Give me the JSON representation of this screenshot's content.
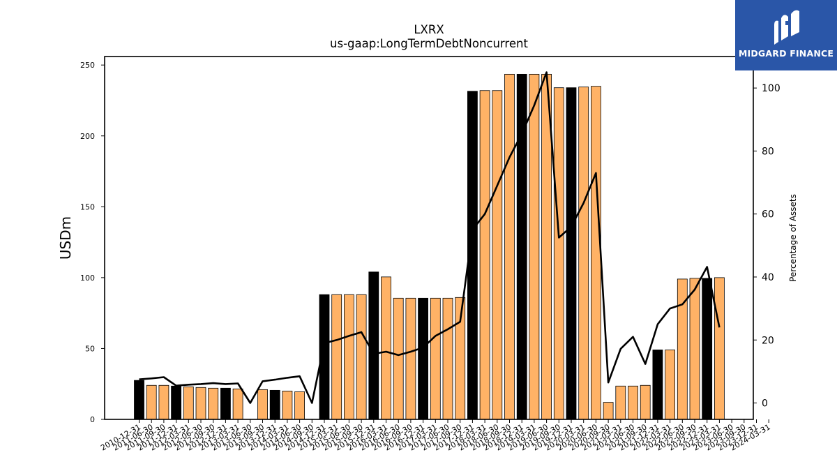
{
  "chart_data": {
    "type": "bar",
    "title": "LXRX",
    "subtitle": "us-gaap:LongTermDebtNoncurrent",
    "ylabel": "USDm",
    "y2label": "Percentage of Assets",
    "ylim": [
      0,
      256
    ],
    "y2lim": [
      -5.2,
      110
    ],
    "yticks": [
      0,
      50,
      100,
      150,
      200,
      250
    ],
    "y2ticks": [
      0,
      20,
      40,
      60,
      80,
      100
    ],
    "categories": [
      "2010-12-31",
      "2011-06-30",
      "2011-09-30",
      "2011-12-31",
      "2012-03-31",
      "2012-06-30",
      "2012-09-30",
      "2012-12-31",
      "2013-03-31",
      "2013-06-30",
      "2013-09-30",
      "2013-12-31",
      "2014-03-31",
      "2014-06-30",
      "2014-09-30",
      "2014-12-31",
      "2015-03-31",
      "2015-06-30",
      "2015-09-30",
      "2015-12-31",
      "2016-03-31",
      "2016-06-30",
      "2016-09-30",
      "2016-12-31",
      "2017-03-31",
      "2017-06-30",
      "2017-09-30",
      "2017-12-31",
      "2018-03-31",
      "2018-06-30",
      "2018-09-30",
      "2018-12-31",
      "2019-03-31",
      "2019-06-30",
      "2019-09-30",
      "2019-12-31",
      "2020-03-31",
      "2020-06-30",
      "2020-09-30",
      "2021-03-31",
      "2021-06-30",
      "2021-09-30",
      "2021-12-31",
      "2022-03-31",
      "2022-06-30",
      "2022-09-30",
      "2022-12-31",
      "2023-03-31"
    ],
    "tick_labels": [
      "2010-12-31",
      "2011-06-30",
      "2011-09-30",
      "2011-12-31",
      "2012-03-31",
      "2012-06-30",
      "2012-09-30",
      "2012-12-31",
      "2013-03-31",
      "2013-06-30",
      "2013-09-30",
      "2013-12-31",
      "2014-03-31",
      "2014-06-30",
      "2014-09-30",
      "2014-12-31",
      "2015-03-31",
      "2015-06-30",
      "2015-09-30",
      "2015-12-31",
      "2016-03-31",
      "2016-06-30",
      "2016-09-30",
      "2016-12-31",
      "2017-03-31",
      "2017-06-30",
      "2017-09-30",
      "2017-12-31",
      "2018-03-31",
      "2018-06-30",
      "2018-09-30",
      "2018-12-31",
      "2019-03-31",
      "2019-06-30",
      "2019-09-30",
      "2019-12-31",
      "2020-03-31",
      "2020-06-30",
      "2020-09-30",
      "2021-03-31",
      "2021-06-30",
      "2021-09-30",
      "2021-12-31",
      "2022-03-31",
      "2022-06-30",
      "2022-09-30",
      "2022-12-31",
      "2023-03-31",
      "2023-06-30",
      "2023-09-30",
      "2023-12-31",
      "2024-03-31"
    ],
    "series": [
      {
        "kind": "bar",
        "axis": "left",
        "values": [
          27.5,
          24,
          24,
          23.5,
          23,
          22.5,
          22,
          22,
          21.5,
          null,
          21,
          20.5,
          20,
          19.5,
          null,
          88,
          88,
          88,
          88,
          104,
          100.5,
          85.5,
          85.5,
          85.5,
          85.5,
          85.5,
          86,
          231.5,
          232,
          232,
          243.5,
          243.5,
          243.5,
          243.5,
          234,
          234,
          234.5,
          235,
          12,
          23.5,
          23.5,
          24,
          49,
          49,
          99,
          99.5,
          99.5,
          100
        ],
        "colors": [
          "black",
          "orange",
          "orange",
          "black",
          "orange",
          "orange",
          "orange",
          "black",
          "orange",
          "orange",
          "orange",
          "black",
          "orange",
          "orange",
          "orange",
          "black",
          "orange",
          "orange",
          "orange",
          "black",
          "orange",
          "orange",
          "orange",
          "black",
          "orange",
          "orange",
          "orange",
          "black",
          "orange",
          "orange",
          "orange",
          "black",
          "orange",
          "orange",
          "orange",
          "black",
          "orange",
          "orange",
          "orange",
          "orange",
          "orange",
          "orange",
          "black",
          "orange",
          "orange",
          "orange",
          "black",
          "orange"
        ]
      },
      {
        "kind": "line",
        "axis": "right",
        "values": [
          7.5,
          7.8,
          8.2,
          5.5,
          5.8,
          6,
          6.3,
          6,
          6.2,
          0,
          6.9,
          7.4,
          8,
          8.5,
          0,
          19,
          20,
          21.3,
          22.5,
          15.6,
          16.3,
          15.2,
          16.3,
          17.6,
          21.3,
          23.4,
          25.8,
          55,
          60,
          69,
          78,
          85.5,
          94.5,
          105,
          52.5,
          56,
          63.5,
          73,
          6.5,
          17.2,
          21,
          12.4,
          25,
          30,
          31.3,
          36,
          43.2,
          24
        ]
      }
    ],
    "colors": {
      "orange": "#ffb266",
      "black": "#000000",
      "line": "#000000"
    },
    "grid": false,
    "legend": "none"
  },
  "logo": {
    "text": "MIDGARD FINANCE",
    "icon": "midgard-logo-icon",
    "background": "#2a56a8"
  }
}
